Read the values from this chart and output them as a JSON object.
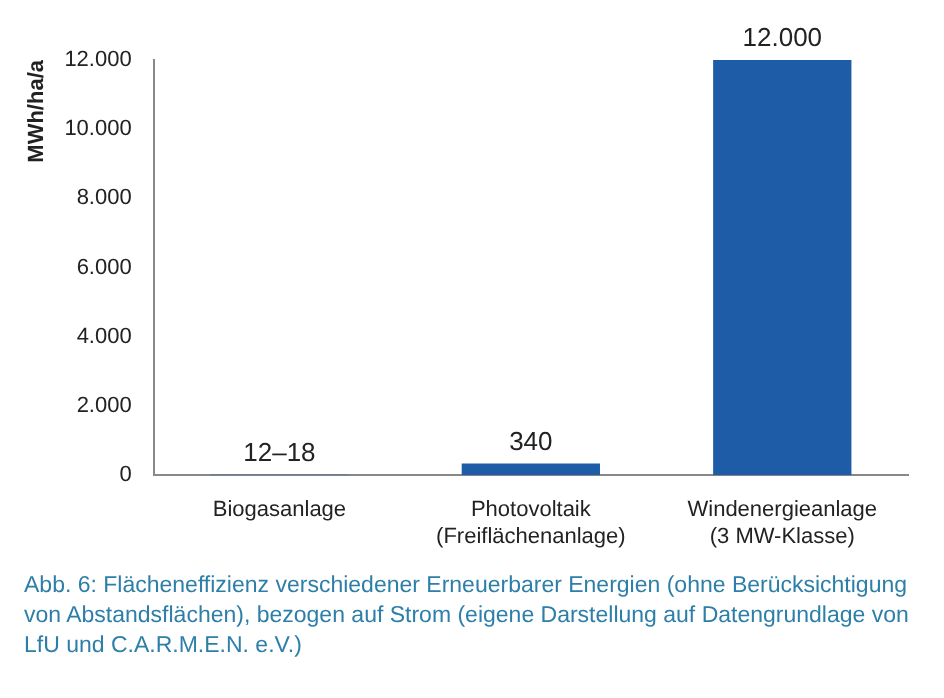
{
  "chart_data": {
    "type": "bar",
    "ylabel": "MWh/ha/a",
    "categories": [
      "Biogasanlage",
      "Photovoltaik\n(Freiflächenanlage)",
      "Windenergieanlage\n(3 MW-Klasse)"
    ],
    "values": [
      15,
      340,
      12000
    ],
    "value_labels": [
      "12–18",
      "340",
      "12.000"
    ],
    "color": "#1f5ca8",
    "ylim": [
      0,
      12000
    ],
    "yticks": [
      {
        "value": 0,
        "label": "0"
      },
      {
        "value": 2000,
        "label": "2.000"
      },
      {
        "value": 4000,
        "label": "4.000"
      },
      {
        "value": 6000,
        "label": "6.000"
      },
      {
        "value": 8000,
        "label": "8.000"
      },
      {
        "value": 10000,
        "label": "10.000"
      },
      {
        "value": 12000,
        "label": "12.000"
      }
    ],
    "annotations": [
      "Abb. 6: Flächeneffizienz verschiedener Erneuerbarer Energien (ohne Berücksichtigung von Abstandsflächen), bezogen auf Strom (eigene Darstellung auf Datengrundlage von LfU und C.A.R.M.E.N. e.V.)"
    ]
  }
}
